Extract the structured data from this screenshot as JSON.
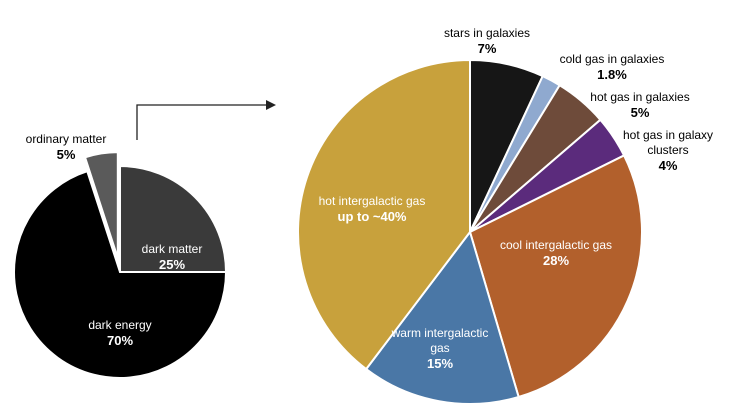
{
  "chart_data": [
    {
      "type": "pie",
      "categories": [
        "ordinary matter",
        "dark matter",
        "dark energy"
      ],
      "values": [
        5,
        25,
        70
      ],
      "value_labels": [
        "5%",
        "25%",
        "70%"
      ],
      "colors": [
        "#5a5a5a",
        "#3a3a3a",
        "#000000"
      ],
      "explode": [
        true,
        false,
        false
      ]
    },
    {
      "type": "pie",
      "categories": [
        "stars in galaxies",
        "cold gas in galaxies",
        "hot gas in galaxies",
        "hot gas in galaxy clusters",
        "cool intergalactic gas",
        "warm intergalactic gas",
        "hot intergalactic gas"
      ],
      "values": [
        7,
        1.8,
        5,
        4,
        28,
        15,
        40
      ],
      "value_labels": [
        "7%",
        "1.8%",
        "5%",
        "4%",
        "28%",
        "15%",
        "up to ~40%"
      ],
      "colors": [
        "#161616",
        "#8fa9cf",
        "#6e4b3a",
        "#5b2b7c",
        "#b2602c",
        "#4a77a6",
        "#c8a13c"
      ],
      "explode": [
        false,
        false,
        false,
        false,
        false,
        false,
        false
      ]
    }
  ]
}
